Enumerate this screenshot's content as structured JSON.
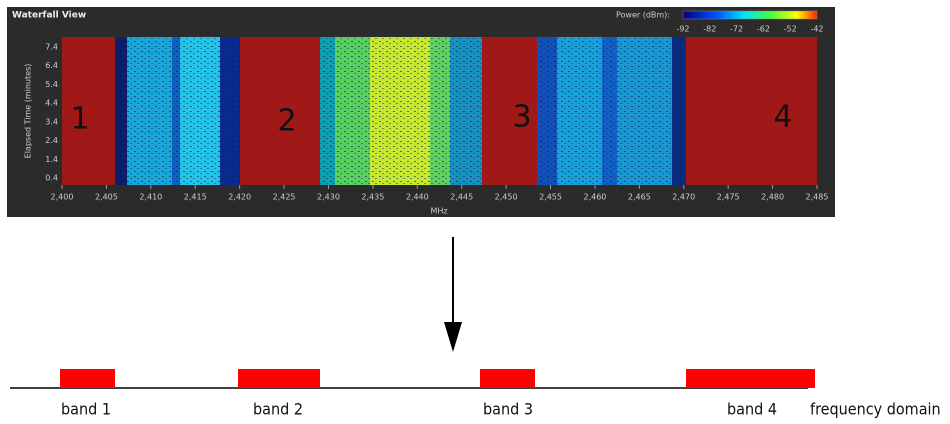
{
  "waterfall": {
    "title": "Waterfall View",
    "power_label": "Power (dBm):",
    "power_ticks": [
      "-92",
      "-82",
      "-72",
      "-62",
      "-52",
      "-42"
    ],
    "y_label": "Elapsed Time (minutes)",
    "y_ticks": [
      "7.4",
      "6.4",
      "5.4",
      "4.4",
      "3.4",
      "2.4",
      "1.4",
      "0.4"
    ],
    "x_label": "MHz",
    "x_ticks": [
      "2,400",
      "2,405",
      "2,410",
      "2,415",
      "2,420",
      "2,425",
      "2,430",
      "2,435",
      "2,440",
      "2,445",
      "2,450",
      "2,455",
      "2,460",
      "2,465",
      "2,470",
      "2,475",
      "2,480",
      "2,485"
    ],
    "band_numbers": [
      "1",
      "2",
      "3",
      "4"
    ]
  },
  "diagram": {
    "bands": [
      "band 1",
      "band 2",
      "band 3",
      "band 4"
    ],
    "axis_label": "frequency domain"
  }
}
